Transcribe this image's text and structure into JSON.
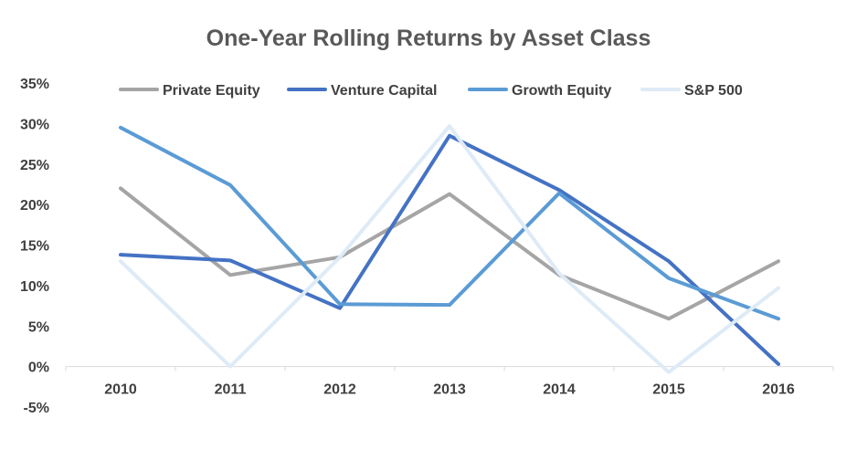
{
  "chart_data": {
    "type": "line",
    "title": "One-Year Rolling Returns by Asset Class",
    "categories": [
      "2010",
      "2011",
      "2012",
      "2013",
      "2014",
      "2015",
      "2016"
    ],
    "ylim": [
      -5,
      35
    ],
    "y_ticks": [
      -5,
      0,
      5,
      10,
      15,
      20,
      25,
      30,
      35
    ],
    "y_tick_labels": [
      "-5%",
      "0%",
      "5%",
      "10%",
      "15%",
      "20%",
      "25%",
      "30%",
      "35%"
    ],
    "grid": false,
    "legend_position": "top",
    "series": [
      {
        "name": "Private Equity",
        "color": "#a5a5a5",
        "values": [
          22.0,
          11.3,
          13.5,
          21.3,
          11.3,
          5.9,
          13.0
        ]
      },
      {
        "name": "Venture Capital",
        "color": "#4472c4",
        "values": [
          13.8,
          13.1,
          7.2,
          28.5,
          21.8,
          13.0,
          0.3
        ]
      },
      {
        "name": "Growth Equity",
        "color": "#5b9bd5",
        "values": [
          29.5,
          22.4,
          7.7,
          7.6,
          21.4,
          10.9,
          5.9
        ]
      },
      {
        "name": "S&P 500",
        "color": "#deebf7",
        "values": [
          13.0,
          0.0,
          13.5,
          29.7,
          11.5,
          -0.7,
          9.7
        ]
      }
    ]
  }
}
